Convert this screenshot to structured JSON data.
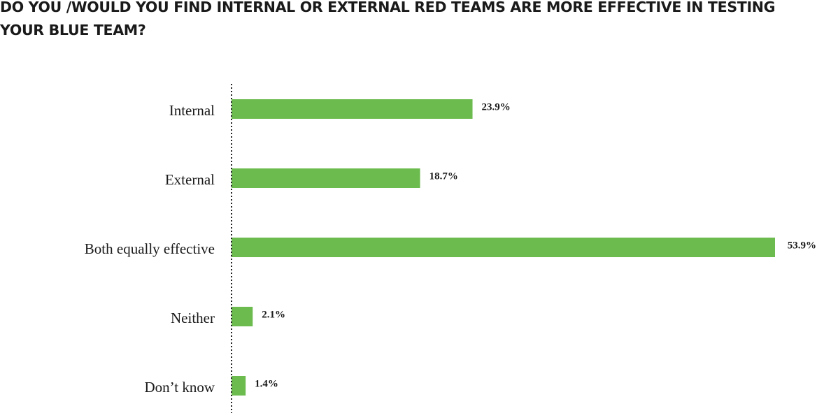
{
  "chart_data": {
    "type": "bar",
    "orientation": "horizontal",
    "title": "DO YOU /WOULD YOU FIND INTERNAL OR EXTERNAL RED TEAMS ARE MORE EFFECTIVE IN TESTING YOUR BLUE TEAM?",
    "categories": [
      "Internal",
      "External",
      "Both equally effective",
      "Neither",
      "Don’t know"
    ],
    "values": [
      23.9,
      18.7,
      53.9,
      2.1,
      1.4
    ],
    "value_labels": [
      "23.9%",
      "18.7%",
      "53.9%",
      "2.1%",
      "1.4%"
    ],
    "xlim": [
      0,
      53.9
    ],
    "grid": false,
    "legend": "none",
    "bar_color": "#6cbb4f",
    "axis_line_color": "#222222"
  }
}
